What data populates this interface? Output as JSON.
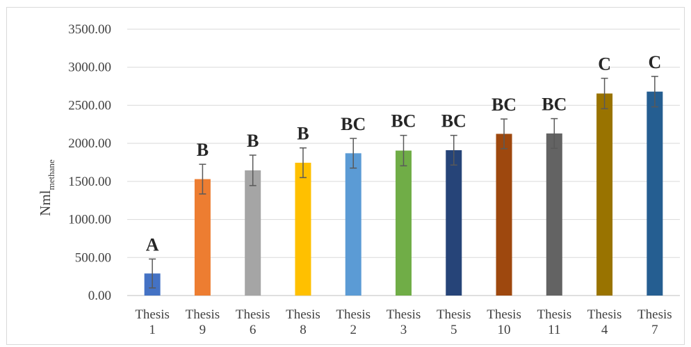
{
  "chart_data": {
    "type": "bar",
    "categories": [
      "Thesis 1",
      "Thesis 9",
      "Thesis 6",
      "Thesis 8",
      "Thesis 2",
      "Thesis 3",
      "Thesis 5",
      "Thesis 10",
      "Thesis 11",
      "Thesis 4",
      "Thesis 7"
    ],
    "category_lines": [
      [
        "Thesis",
        "1"
      ],
      [
        "Thesis",
        "9"
      ],
      [
        "Thesis",
        "6"
      ],
      [
        "Thesis",
        "8"
      ],
      [
        "Thesis",
        "2"
      ],
      [
        "Thesis",
        "3"
      ],
      [
        "Thesis",
        "5"
      ],
      [
        "Thesis",
        "10"
      ],
      [
        "Thesis",
        "11"
      ],
      [
        "Thesis",
        "4"
      ],
      [
        "Thesis",
        "7"
      ]
    ],
    "values": [
      290,
      1530,
      1645,
      1745,
      1870,
      1905,
      1910,
      2125,
      2130,
      2655,
      2680
    ],
    "error": [
      190,
      195,
      200,
      195,
      195,
      200,
      195,
      195,
      195,
      200,
      200
    ],
    "groups": [
      "A",
      "B",
      "B",
      "B",
      "BC",
      "BC",
      "BC",
      "BC",
      "BC",
      "C",
      "C"
    ],
    "colors": [
      "#4472C4",
      "#ED7D31",
      "#A5A5A5",
      "#FFC000",
      "#5B9BD5",
      "#70AD47",
      "#264478",
      "#9E480E",
      "#636363",
      "#997300",
      "#255E91"
    ],
    "ylabel_main": "Nml",
    "ylabel_sub": "methane",
    "ylim": [
      0,
      3500
    ],
    "yticks": [
      0,
      500,
      1000,
      1500,
      2000,
      2500,
      3000,
      3500
    ],
    "ytick_labels": [
      "0.00",
      "500.00",
      "1000.00",
      "1500.00",
      "2000.00",
      "2500.00",
      "3000.00",
      "3500.00"
    ],
    "grid": true,
    "legend": "none",
    "title": "",
    "xlabel": ""
  }
}
